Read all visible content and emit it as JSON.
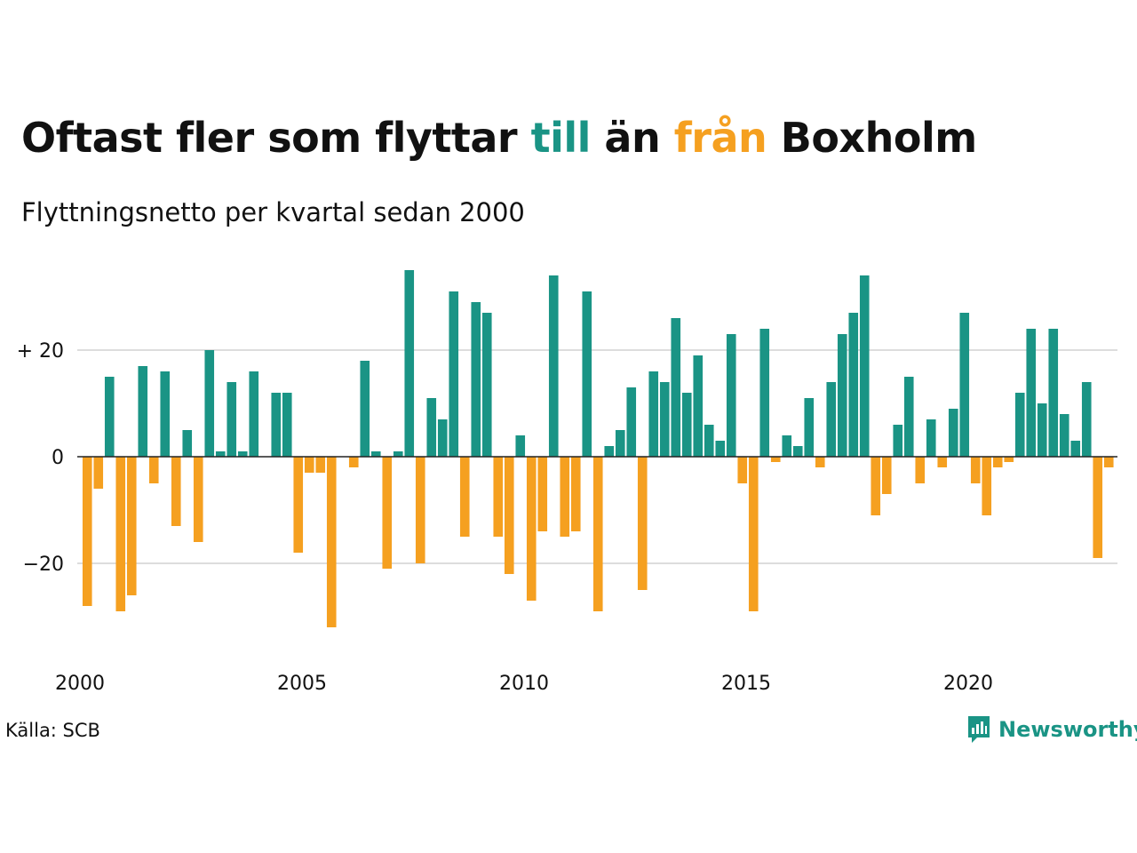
{
  "title": {
    "part1": "Oftast fler som flyttar ",
    "highlight_in": "till",
    "part2": " än ",
    "highlight_out": "från",
    "part3": " Boxholm"
  },
  "subtitle": "Flyttningsnetto per kvartal sedan 2000",
  "source": "Källa: SCB",
  "logo": {
    "text": "Newsworthy",
    "icon": "newsworthy-chart-icon"
  },
  "colors": {
    "positive": "#1a9485",
    "negative": "#f5a020",
    "grid": "#dddddd",
    "zero_line": "#222222",
    "logo": "#1a9485"
  },
  "chart_data": {
    "type": "bar",
    "title": "Oftast fler som flyttar till än från Boxholm",
    "subtitle": "Flyttningsnetto per kvartal sedan 2000",
    "x_start": "2000 Q1",
    "xticks": [
      "2000",
      "2005",
      "2010",
      "2015",
      "2020"
    ],
    "yticks": [
      {
        "value": 20,
        "label": "+ 20"
      },
      {
        "value": 0,
        "label": "0"
      },
      {
        "value": -20,
        "label": "−20"
      }
    ],
    "ylim": [
      -38,
      38
    ],
    "grid": true,
    "values": [
      -28,
      -6,
      15,
      -29,
      -26,
      17,
      -5,
      16,
      -13,
      5,
      -16,
      20,
      1,
      14,
      1,
      16,
      0,
      12,
      12,
      -18,
      -3,
      -3,
      -32,
      0,
      -2,
      18,
      1,
      -21,
      1,
      35,
      -20,
      11,
      7,
      31,
      -15,
      29,
      27,
      -15,
      -22,
      4,
      -27,
      -14,
      34,
      -15,
      -14,
      31,
      -29,
      2,
      5,
      13,
      -25,
      16,
      14,
      26,
      12,
      19,
      6,
      3,
      23,
      -5,
      -29,
      24,
      -1,
      4,
      2,
      11,
      -2,
      14,
      23,
      27,
      34,
      -11,
      -7,
      6,
      15,
      -5,
      7,
      -2,
      9,
      27,
      -5,
      -11,
      -2,
      -1,
      12,
      24,
      10,
      24,
      8,
      3,
      14,
      -19,
      -2
    ]
  }
}
